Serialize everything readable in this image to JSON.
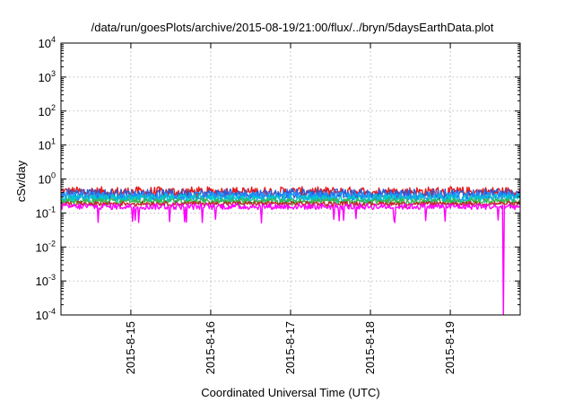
{
  "chart_data": {
    "type": "line",
    "title": "/data/run/goesPlots/archive/2015-08-19/21:00/flux/../bryn/5daysEarthData.plot",
    "xlabel": "Coordinated Universal Time (UTC)",
    "ylabel": "cSv/day",
    "yscale": "log",
    "ylim": [
      0.0001,
      10000
    ],
    "y_ticks": [
      {
        "base": "10",
        "exp": "-4",
        "value": 0.0001
      },
      {
        "base": "10",
        "exp": "-3",
        "value": 0.001
      },
      {
        "base": "10",
        "exp": "-2",
        "value": 0.01
      },
      {
        "base": "10",
        "exp": "-1",
        "value": 0.1
      },
      {
        "base": "10",
        "exp": "0",
        "value": 1
      },
      {
        "base": "10",
        "exp": "1",
        "value": 10
      },
      {
        "base": "10",
        "exp": "2",
        "value": 100
      },
      {
        "base": "10",
        "exp": "3",
        "value": 1000
      },
      {
        "base": "10",
        "exp": "4",
        "value": 10000
      }
    ],
    "xlim": [
      "2015-08-14 03:00",
      "2015-08-19 21:00"
    ],
    "x_ticks": [
      {
        "label": "2015-8-15",
        "value": "2015-08-15 00:00"
      },
      {
        "label": "2015-8-16",
        "value": "2015-08-16 00:00"
      },
      {
        "label": "2015-8-17",
        "value": "2015-08-17 00:00"
      },
      {
        "label": "2015-8-18",
        "value": "2015-08-18 00:00"
      },
      {
        "label": "2015-8-19",
        "value": "2015-08-19 00:00"
      }
    ],
    "grid": true,
    "legend": "none",
    "series": [
      {
        "color": "#e41a1c",
        "level": 0.42,
        "spread": 0.3,
        "dip_to": 0.32
      },
      {
        "color": "#2b5bd7",
        "level": 0.36,
        "spread": 0.3,
        "dip_to": 0.28
      },
      {
        "color": "#1e90ff",
        "level": 0.31,
        "spread": 0.25,
        "dip_to": 0.24
      },
      {
        "color": "#00c8c8",
        "level": 0.27,
        "spread": 0.22,
        "dip_to": 0.21
      },
      {
        "color": "#3cb44b",
        "level": 0.225,
        "spread": 0.15,
        "dip_to": 0.18
      },
      {
        "color": "#c02828",
        "level": 0.19,
        "spread": 0.12,
        "dip_to": 0.16
      },
      {
        "color": "#ff00ff",
        "level": 0.155,
        "spread": 0.18,
        "dip_to": 0.06,
        "final_drop_at": "2015-08-19 16:00",
        "final_drop_to": 0.0001
      }
    ]
  }
}
